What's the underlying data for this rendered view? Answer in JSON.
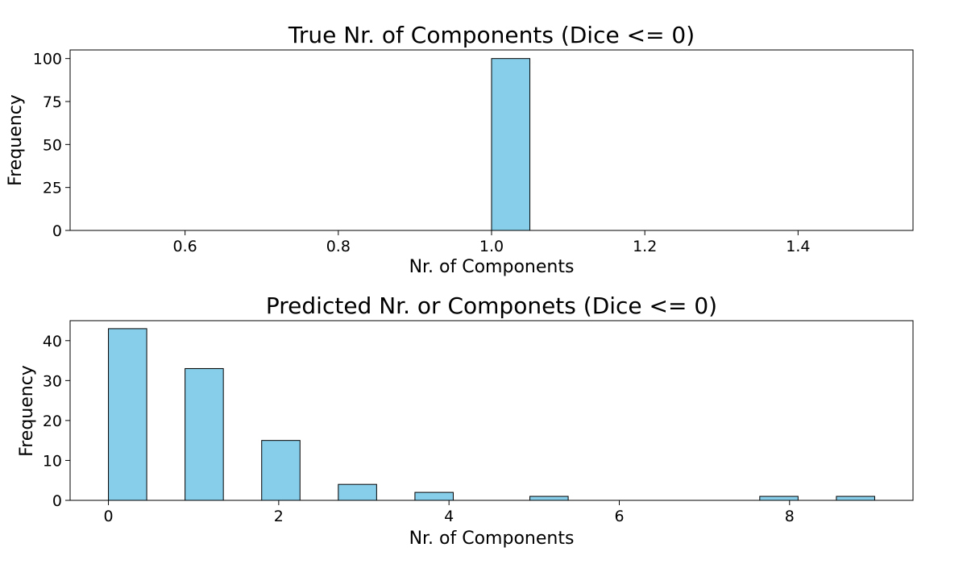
{
  "colors": {
    "bar_fill": "#87CEEB",
    "bar_edge": "#000000"
  },
  "chart_data": [
    {
      "type": "bar",
      "title": "True Nr. of Components (Dice <= 0)",
      "xlabel": "Nr. of Components",
      "ylabel": "Frequency",
      "xlim": [
        0.45,
        1.55
      ],
      "ylim": [
        0,
        105
      ],
      "xticks": [
        {
          "value": 0.6,
          "label": "0.6"
        },
        {
          "value": 0.8,
          "label": "0.8"
        },
        {
          "value": 1.0,
          "label": "1.0"
        },
        {
          "value": 1.2,
          "label": "1.2"
        },
        {
          "value": 1.4,
          "label": "1.4"
        }
      ],
      "yticks": [
        {
          "value": 0,
          "label": "0"
        },
        {
          "value": 25,
          "label": "25"
        },
        {
          "value": 50,
          "label": "50"
        },
        {
          "value": 75,
          "label": "75"
        },
        {
          "value": 100,
          "label": "100"
        }
      ],
      "bars": [
        {
          "x0": 1.0,
          "x1": 1.05,
          "value": 100
        }
      ],
      "grid": false
    },
    {
      "type": "bar",
      "title": "Predicted Nr. or Componets (Dice <= 0)",
      "xlabel": "Nr. of Components",
      "ylabel": "Frequency",
      "xlim": [
        -0.45,
        9.45
      ],
      "ylim": [
        0,
        45
      ],
      "xticks": [
        {
          "value": 0,
          "label": "0"
        },
        {
          "value": 2,
          "label": "2"
        },
        {
          "value": 4,
          "label": "4"
        },
        {
          "value": 6,
          "label": "6"
        },
        {
          "value": 8,
          "label": "8"
        }
      ],
      "yticks": [
        {
          "value": 0,
          "label": "0"
        },
        {
          "value": 10,
          "label": "10"
        },
        {
          "value": 20,
          "label": "20"
        },
        {
          "value": 30,
          "label": "30"
        },
        {
          "value": 40,
          "label": "40"
        }
      ],
      "bars": [
        {
          "x0": 0.0,
          "x1": 0.45,
          "value": 43
        },
        {
          "x0": 0.9,
          "x1": 1.35,
          "value": 33
        },
        {
          "x0": 1.8,
          "x1": 2.25,
          "value": 15
        },
        {
          "x0": 2.7,
          "x1": 3.15,
          "value": 4
        },
        {
          "x0": 3.6,
          "x1": 4.05,
          "value": 2
        },
        {
          "x0": 4.95,
          "x1": 5.4,
          "value": 1
        },
        {
          "x0": 7.65,
          "x1": 8.1,
          "value": 1
        },
        {
          "x0": 8.55,
          "x1": 9.0,
          "value": 1
        }
      ],
      "grid": false
    }
  ]
}
